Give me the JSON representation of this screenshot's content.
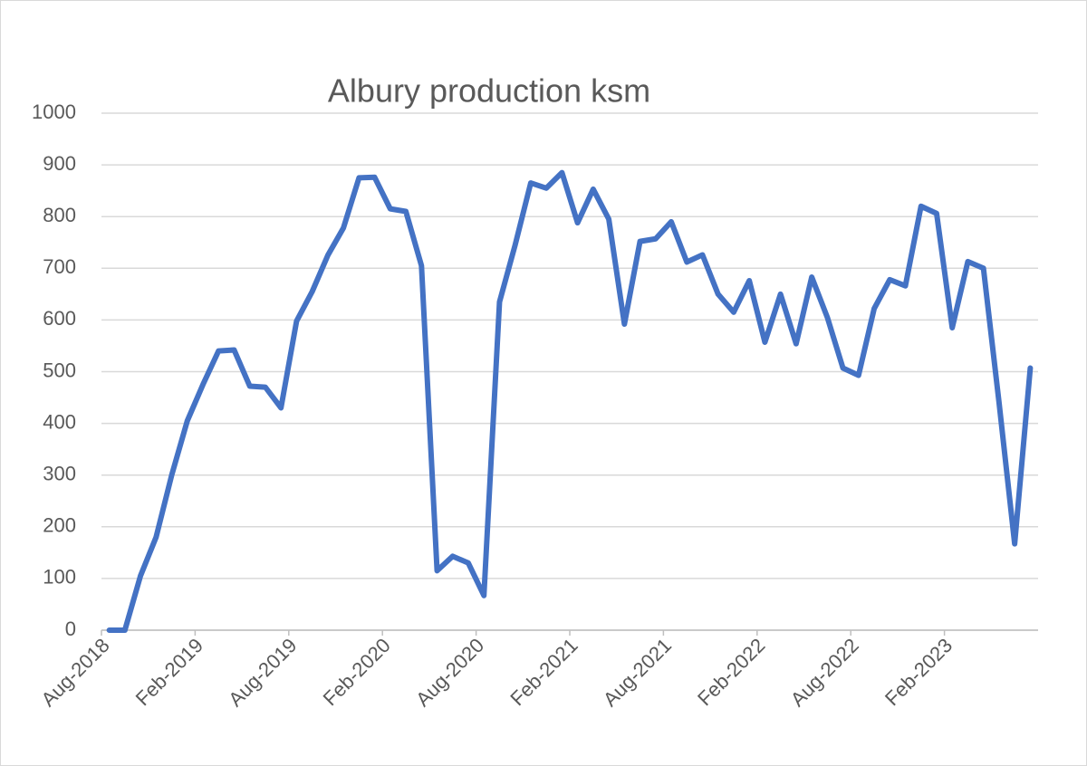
{
  "chart_data": {
    "type": "line",
    "title": "Albury production ksm",
    "categories": [
      "Aug-2018",
      null,
      null,
      null,
      null,
      null,
      "Feb-2019",
      null,
      null,
      null,
      null,
      null,
      "Aug-2019",
      null,
      null,
      null,
      null,
      null,
      "Feb-2020",
      null,
      null,
      null,
      null,
      null,
      "Aug-2020",
      null,
      null,
      null,
      null,
      null,
      "Feb-2021",
      null,
      null,
      null,
      null,
      null,
      "Aug-2021",
      null,
      null,
      null,
      null,
      null,
      "Feb-2022",
      null,
      null,
      null,
      null,
      null,
      "Aug-2022",
      null,
      null,
      null,
      null,
      null,
      "Feb-2023",
      null,
      null,
      null,
      null,
      null
    ],
    "series": [
      {
        "name": "Albury production ksm",
        "color": "#4472c4",
        "values": [
          0,
          0,
          105,
          180,
          300,
          405,
          475,
          540,
          542,
          472,
          470,
          430,
          598,
          655,
          725,
          778,
          875,
          876,
          815,
          810,
          705,
          115,
          143,
          130,
          67,
          635,
          745,
          865,
          855,
          885,
          788,
          853,
          795,
          592,
          752,
          757,
          790,
          712,
          726,
          650,
          615,
          676,
          557,
          650,
          554,
          683,
          605,
          507,
          493,
          622,
          678,
          666,
          820,
          806,
          585,
          713,
          700,
          440,
          167,
          507
        ]
      }
    ],
    "ylim": [
      0,
      1000
    ],
    "yticks": [
      0,
      100,
      200,
      300,
      400,
      500,
      600,
      700,
      800,
      900,
      1000
    ],
    "grid": true
  }
}
